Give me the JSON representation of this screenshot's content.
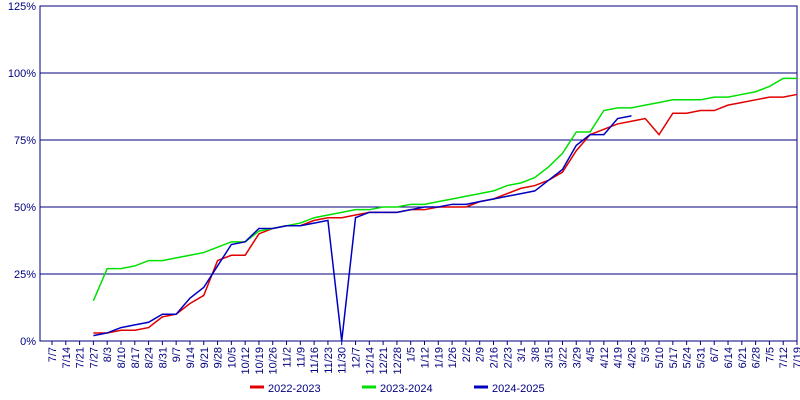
{
  "chart_data": {
    "type": "line",
    "categories": [
      "7/7",
      "7/14",
      "7/21",
      "7/27",
      "8/3",
      "8/10",
      "8/17",
      "8/24",
      "8/31",
      "9/7",
      "9/14",
      "9/21",
      "9/28",
      "10/5",
      "10/12",
      "10/19",
      "10/26",
      "11/2",
      "11/9",
      "11/16",
      "11/23",
      "11/30",
      "12/7",
      "12/14",
      "12/21",
      "12/28",
      "1/5",
      "1/12",
      "1/19",
      "1/26",
      "2/2",
      "2/9",
      "2/16",
      "2/23",
      "3/1",
      "3/8",
      "3/15",
      "3/22",
      "3/29",
      "4/5",
      "4/12",
      "4/19",
      "4/26",
      "5/3",
      "5/10",
      "5/17",
      "5/24",
      "5/31",
      "6/7",
      "6/14",
      "6/21",
      "6/28",
      "7/5",
      "7/12",
      "7/19"
    ],
    "series": [
      {
        "name": "2022-2023",
        "color": "#e00000",
        "values": [
          null,
          null,
          null,
          3,
          3,
          4,
          4,
          5,
          9,
          10,
          14,
          17,
          30,
          32,
          32,
          40,
          42,
          43,
          43,
          45,
          46,
          46,
          47,
          48,
          48,
          48,
          49,
          49,
          50,
          50,
          50,
          52,
          53,
          55,
          57,
          58,
          60,
          63,
          71,
          77,
          79,
          81,
          82,
          83,
          77,
          85,
          85,
          86,
          86,
          88,
          89,
          90,
          91,
          91,
          92
        ]
      },
      {
        "name": "2023-2024",
        "color": "#00e000",
        "values": [
          null,
          null,
          null,
          15,
          27,
          27,
          28,
          30,
          30,
          31,
          32,
          33,
          35,
          37,
          37,
          41,
          42,
          43,
          44,
          46,
          47,
          48,
          49,
          49,
          50,
          50,
          51,
          51,
          52,
          53,
          54,
          55,
          56,
          58,
          59,
          61,
          65,
          70,
          78,
          78,
          86,
          87,
          87,
          88,
          89,
          90,
          90,
          90,
          91,
          91,
          92,
          93,
          95,
          98,
          98
        ]
      },
      {
        "name": "2024-2025",
        "color": "#0000c0",
        "values": [
          null,
          null,
          null,
          2,
          3,
          5,
          6,
          7,
          10,
          10,
          16,
          20,
          28,
          36,
          37,
          42,
          42,
          43,
          43,
          44,
          45,
          0,
          46,
          48,
          48,
          48,
          49,
          50,
          50,
          51,
          51,
          52,
          53,
          54,
          55,
          56,
          60,
          64,
          73,
          77,
          77,
          83,
          84,
          null,
          null,
          null,
          null,
          null,
          null,
          null,
          null,
          null,
          null,
          null,
          null
        ]
      }
    ],
    "ylim": [
      0,
      125
    ],
    "yticks": [
      {
        "value": 0,
        "label": "0%"
      },
      {
        "value": 25,
        "label": "25%"
      },
      {
        "value": 50,
        "label": "50%"
      },
      {
        "value": 75,
        "label": "75%"
      },
      {
        "value": 100,
        "label": "100%"
      },
      {
        "value": 125,
        "label": "125%"
      }
    ],
    "grid": true,
    "legend": "bottom"
  }
}
